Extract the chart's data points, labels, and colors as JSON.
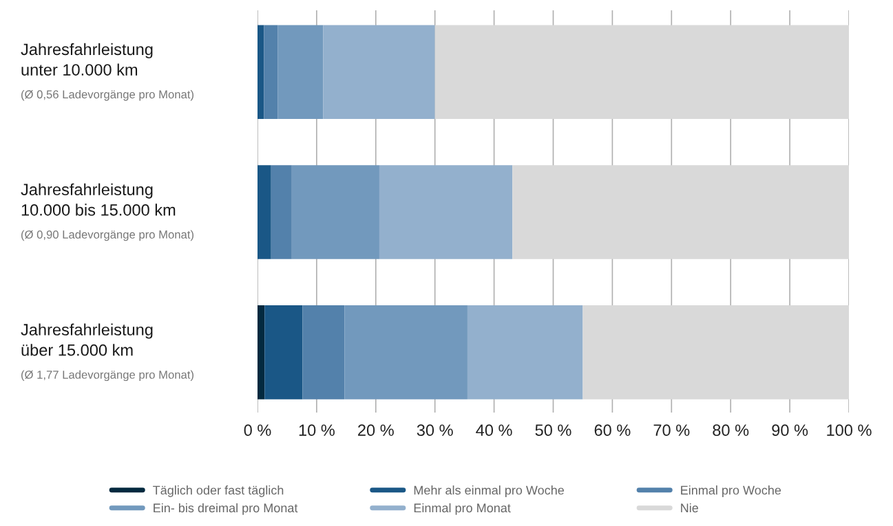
{
  "chart_data": {
    "type": "bar",
    "orientation": "horizontal",
    "stacked": true,
    "categories": [
      "Jahresfahrleistung\nunter 10.000 km\n(Ø 0,56 Ladevorgänge pro Monat)",
      "Jahresfahrleistung\n10.000 bis 15.000 km\n(Ø 0,90 Ladevorgänge pro Monat)",
      "Jahresfahrleistung\nüber 15.000 km\n(Ø 1,77 Ladevorgänge pro Monat)"
    ],
    "series": [
      {
        "name": "Täglich oder fast täglich",
        "color": "#03293f",
        "values": [
          0,
          0,
          1.2
        ]
      },
      {
        "name": "Mehr als einmal pro Woche",
        "color": "#1a5786",
        "values": [
          1.1,
          2.3,
          6.4
        ]
      },
      {
        "name": "Einmal pro Woche",
        "color": "#5381ab",
        "values": [
          2.3,
          3.5,
          7.1
        ]
      },
      {
        "name": "Ein- bis dreimal pro Monat",
        "color": "#7299bd",
        "values": [
          7.7,
          14.8,
          20.8
        ]
      },
      {
        "name": "Einmal pro Monat",
        "color": "#93b0cd",
        "values": [
          18.9,
          22.5,
          19.5
        ]
      },
      {
        "name": "Nie",
        "color": "#d9d9d9",
        "values": [
          70.0,
          56.9,
          45.0
        ]
      }
    ],
    "xlim": [
      0,
      100
    ],
    "xticks": [
      {
        "value": 0,
        "label": "0 %"
      },
      {
        "value": 10,
        "label": "10 %"
      },
      {
        "value": 20,
        "label": "20 %"
      },
      {
        "value": 30,
        "label": "30 %"
      },
      {
        "value": 40,
        "label": "40 %"
      },
      {
        "value": 50,
        "label": "50 %"
      },
      {
        "value": 60,
        "label": "60 %"
      },
      {
        "value": 70,
        "label": "70 %"
      },
      {
        "value": 80,
        "label": "80 %"
      },
      {
        "value": 90,
        "label": "90 %"
      },
      {
        "value": 100,
        "label": "100 %"
      }
    ],
    "grid": "x",
    "legend": "bottom"
  }
}
